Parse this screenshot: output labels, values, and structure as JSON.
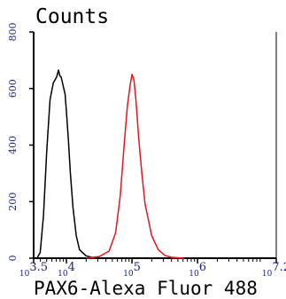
{
  "chart_data": {
    "type": "line",
    "title": "Counts",
    "xlabel": "PAX6-Alexa Fluor 488",
    "ylabel": "",
    "x_scale": "log",
    "xlim": [
      3.5,
      7.2
    ],
    "ylim": [
      0,
      800
    ],
    "y_ticks": [
      0,
      200,
      400,
      600,
      800
    ],
    "x_ticks": [
      {
        "value": 3.5,
        "base": "10",
        "exp": "3.5"
      },
      {
        "value": 4,
        "base": "10",
        "exp": "4"
      },
      {
        "value": 5,
        "base": "10",
        "exp": "5"
      },
      {
        "value": 6,
        "base": "10",
        "exp": "6"
      },
      {
        "value": 7.2,
        "base": "10",
        "exp": "7.2"
      }
    ],
    "grid": false,
    "legend": "none",
    "series": [
      {
        "color": "#000000",
        "x": [
          3.55,
          3.6,
          3.65,
          3.7,
          3.75,
          3.8,
          3.85,
          3.88,
          3.9,
          3.92,
          3.95,
          3.98,
          4.0,
          4.03,
          4.06,
          4.1,
          4.15,
          4.2,
          4.3,
          4.4,
          4.6
        ],
        "y": [
          0,
          20,
          150,
          380,
          560,
          620,
          640,
          665,
          645,
          640,
          610,
          580,
          520,
          420,
          300,
          180,
          80,
          30,
          8,
          2,
          0
        ]
      },
      {
        "color": "#e8141e",
        "x": [
          4.3,
          4.5,
          4.65,
          4.75,
          4.82,
          4.88,
          4.93,
          4.97,
          5.0,
          5.03,
          5.06,
          5.1,
          5.15,
          5.2,
          5.3,
          5.4,
          5.5,
          5.6,
          5.8
        ],
        "y": [
          0,
          6,
          25,
          90,
          220,
          400,
          540,
          610,
          650,
          630,
          560,
          430,
          300,
          190,
          80,
          30,
          10,
          3,
          0
        ]
      }
    ]
  }
}
